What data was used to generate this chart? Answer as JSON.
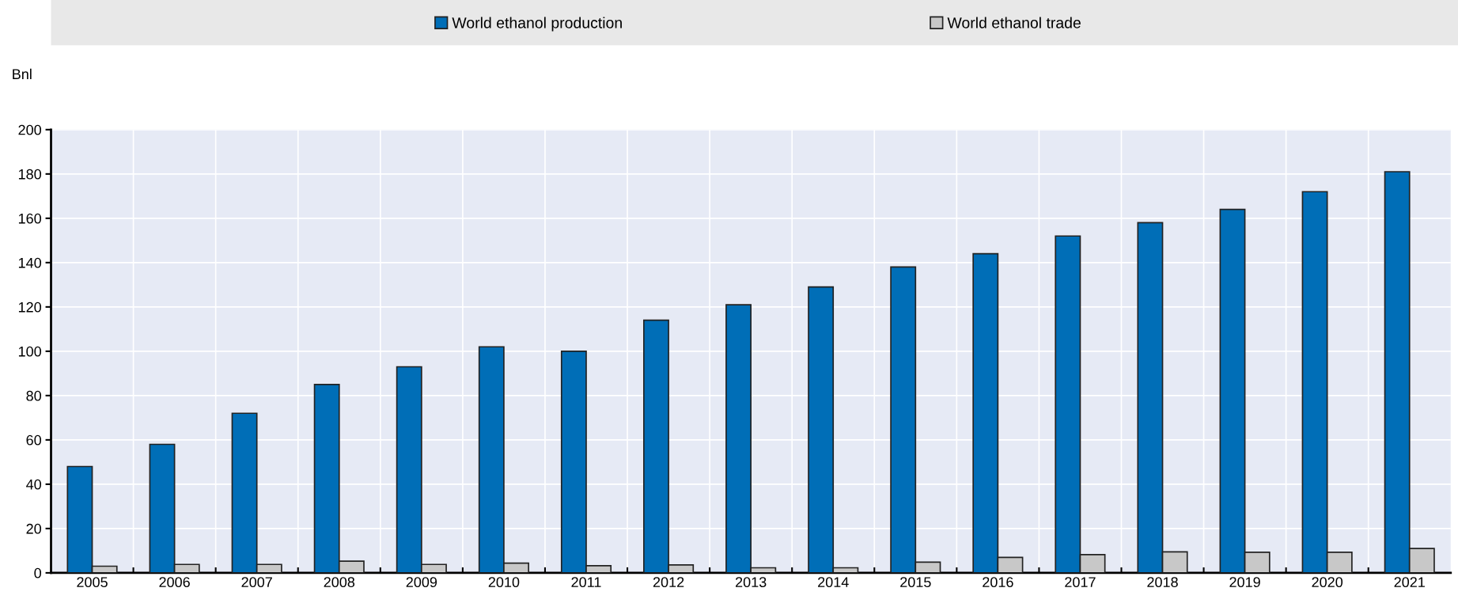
{
  "chart_data": {
    "type": "bar",
    "ylabel": "Bnl",
    "categories": [
      "2005",
      "2006",
      "2007",
      "2008",
      "2009",
      "2010",
      "2011",
      "2012",
      "2013",
      "2014",
      "2015",
      "2016",
      "2017",
      "2018",
      "2019",
      "2020",
      "2021"
    ],
    "series": [
      {
        "name": "World ethanol production",
        "color": "#006eb7",
        "values": [
          48,
          58,
          72,
          85,
          93,
          102,
          100,
          114,
          121,
          129,
          138,
          144,
          152,
          158,
          164,
          172,
          181
        ]
      },
      {
        "name": "World ethanol trade",
        "color": "#c8c8c8",
        "values": [
          3,
          3.8,
          3.8,
          5.3,
          3.8,
          4.4,
          3.2,
          3.6,
          2.3,
          2.3,
          4.8,
          7,
          8.2,
          9.5,
          9.3,
          9.3,
          11
        ]
      }
    ],
    "ylim": [
      0,
      200
    ],
    "yticks": [
      0,
      20,
      40,
      60,
      80,
      100,
      120,
      140,
      160,
      180,
      200
    ],
    "grid": true,
    "legend": "top"
  }
}
